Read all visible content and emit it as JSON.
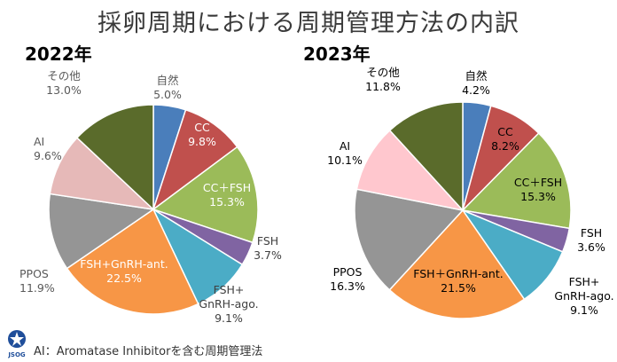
{
  "title": "採卵周期における周期管理方法の内訳",
  "footer": "AI：Aromatase Inhibitorを含む周期管理法",
  "logo_text": "JSOG",
  "colors": {
    "shizen": "#4a7ebb",
    "cc": "#c0504d",
    "cc_fsh": "#9bbb59",
    "fsh": "#8064a2",
    "fsh_gnrh_ago": "#4bacc6",
    "fsh_gnrh_ant": "#f79646",
    "ppos": "#959595",
    "ai_2022": "#e6b9b8",
    "ai_2023": "#ffc7ce",
    "sonota": "#5a6b2b"
  },
  "chart_data": [
    {
      "type": "pie",
      "title": "2022年",
      "categories": [
        "自然",
        "CC",
        "CC＋FSH",
        "FSH",
        "FSH+GnRH-ago.",
        "FSH+GnRH-ant.",
        "PPOS",
        "AI",
        "その他"
      ],
      "values": [
        5.0,
        9.8,
        15.3,
        3.7,
        9.1,
        22.5,
        11.9,
        9.6,
        13.0
      ],
      "labels": [
        {
          "lines": [
            "自然",
            "5.0%"
          ],
          "color": "#595959"
        },
        {
          "lines": [
            "CC",
            "9.8%"
          ],
          "color": "#ffffff"
        },
        {
          "lines": [
            "CC＋FSH",
            "15.3%"
          ],
          "color": "#ffffff"
        },
        {
          "lines": [
            "FSH",
            "3.7%"
          ],
          "color": "#404040"
        },
        {
          "lines": [
            "FSH+",
            "GnRH-ago.",
            "9.1%"
          ],
          "color": "#404040"
        },
        {
          "lines": [
            "FSH+GnRH-ant.",
            "22.5%"
          ],
          "color": "#ffffff"
        },
        {
          "lines": [
            "PPOS",
            "11.9%"
          ],
          "color": "#595959"
        },
        {
          "lines": [
            "AI",
            "9.6%"
          ],
          "color": "#595959"
        },
        {
          "lines": [
            "その他",
            "13.0%"
          ],
          "color": "#595959"
        }
      ]
    },
    {
      "type": "pie",
      "title": "2023年",
      "categories": [
        "自然",
        "CC",
        "CC＋FSH",
        "FSH",
        "FSH+GnRH-ago.",
        "FSH＋GnRH-ant.",
        "PPOS",
        "AI",
        "その他"
      ],
      "values": [
        4.2,
        8.2,
        15.3,
        3.6,
        9.1,
        21.5,
        16.3,
        10.1,
        11.8
      ],
      "labels": [
        {
          "lines": [
            "自然",
            "4.2%"
          ],
          "color": "#000000"
        },
        {
          "lines": [
            "CC",
            "8.2%"
          ],
          "color": "#000000"
        },
        {
          "lines": [
            "CC＋FSH",
            "15.3%"
          ],
          "color": "#000000"
        },
        {
          "lines": [
            "FSH",
            "3.6%"
          ],
          "color": "#000000"
        },
        {
          "lines": [
            "FSH+",
            "GnRH-ago.",
            "9.1%"
          ],
          "color": "#000000"
        },
        {
          "lines": [
            "FSH＋GnRH-ant.",
            "21.5%"
          ],
          "color": "#000000"
        },
        {
          "lines": [
            "PPOS",
            "16.3%"
          ],
          "color": "#000000"
        },
        {
          "lines": [
            "AI",
            "10.1%"
          ],
          "color": "#000000"
        },
        {
          "lines": [
            "その他",
            "11.8%"
          ],
          "color": "#000000"
        }
      ]
    }
  ]
}
